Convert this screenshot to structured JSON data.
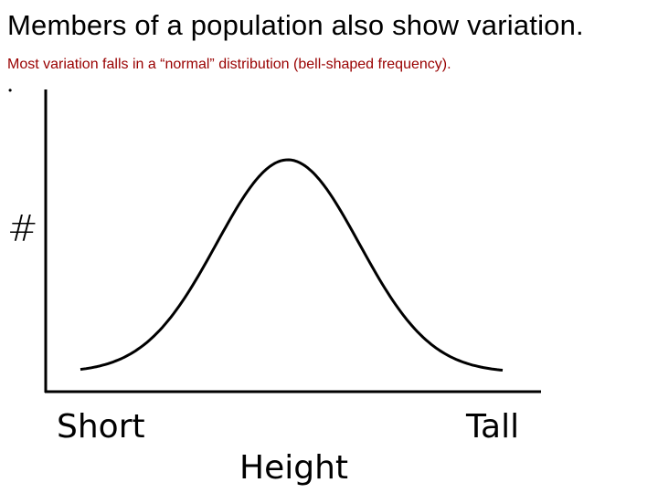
{
  "slide": {
    "title": "Members of a population also show variation.",
    "subtitle": "Most variation falls in a “normal” distribution (bell-shaped frequency).",
    "bullet": "•"
  },
  "diagram": {
    "y_label": "#",
    "x_left_label": "Short",
    "x_right_label": "Tall",
    "x_title": "Height",
    "curve": "bell-shaped",
    "line_color": "#000000"
  }
}
